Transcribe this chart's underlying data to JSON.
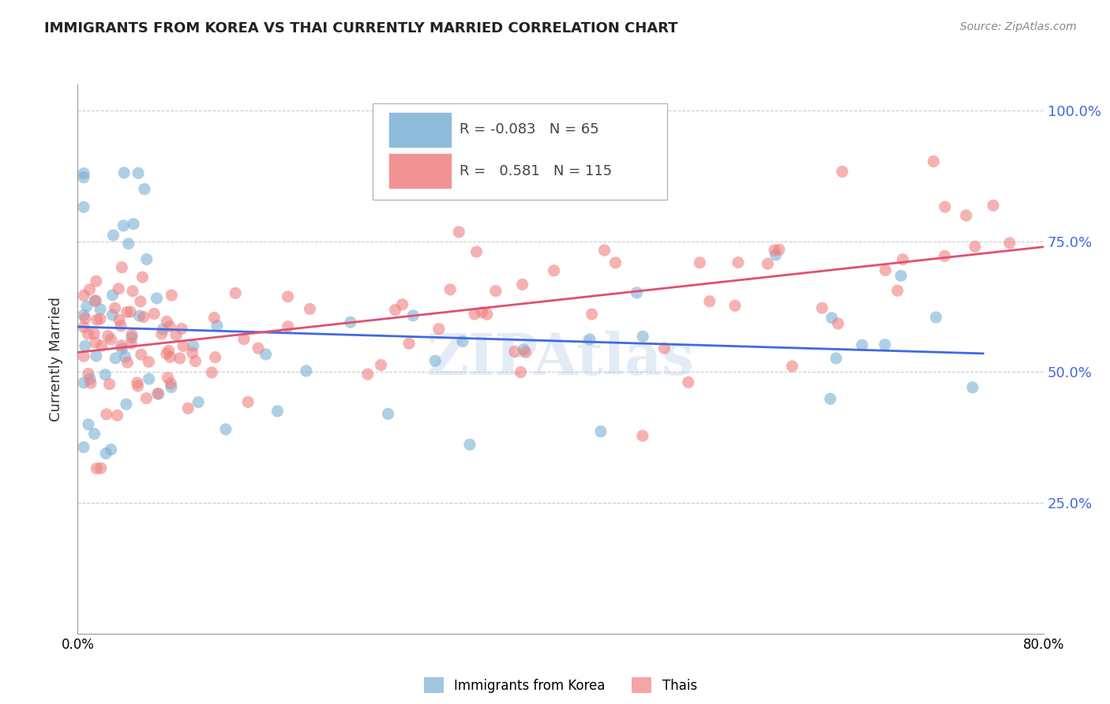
{
  "title": "IMMIGRANTS FROM KOREA VS THAI CURRENTLY MARRIED CORRELATION CHART",
  "source": "Source: ZipAtlas.com",
  "ylabel": "Currently Married",
  "x_min": 0.0,
  "x_max": 0.8,
  "y_min": 0.0,
  "y_max": 1.05,
  "yticks": [
    0.25,
    0.5,
    0.75,
    1.0
  ],
  "ytick_labels": [
    "25.0%",
    "50.0%",
    "75.0%",
    "100.0%"
  ],
  "xtick_labels": [
    "0.0%",
    "80.0%"
  ],
  "legend_r_korea": "-0.083",
  "legend_n_korea": "65",
  "legend_r_thai": "0.581",
  "legend_n_thai": "115",
  "korea_color": "#7bafd4",
  "thai_color": "#f08080",
  "korea_line_color": "#4169e1",
  "thai_line_color": "#e05070",
  "background_color": "#ffffff",
  "watermark": "ZIPAtlas",
  "grid_color": "#cccccc",
  "right_label_color": "#4169e1"
}
